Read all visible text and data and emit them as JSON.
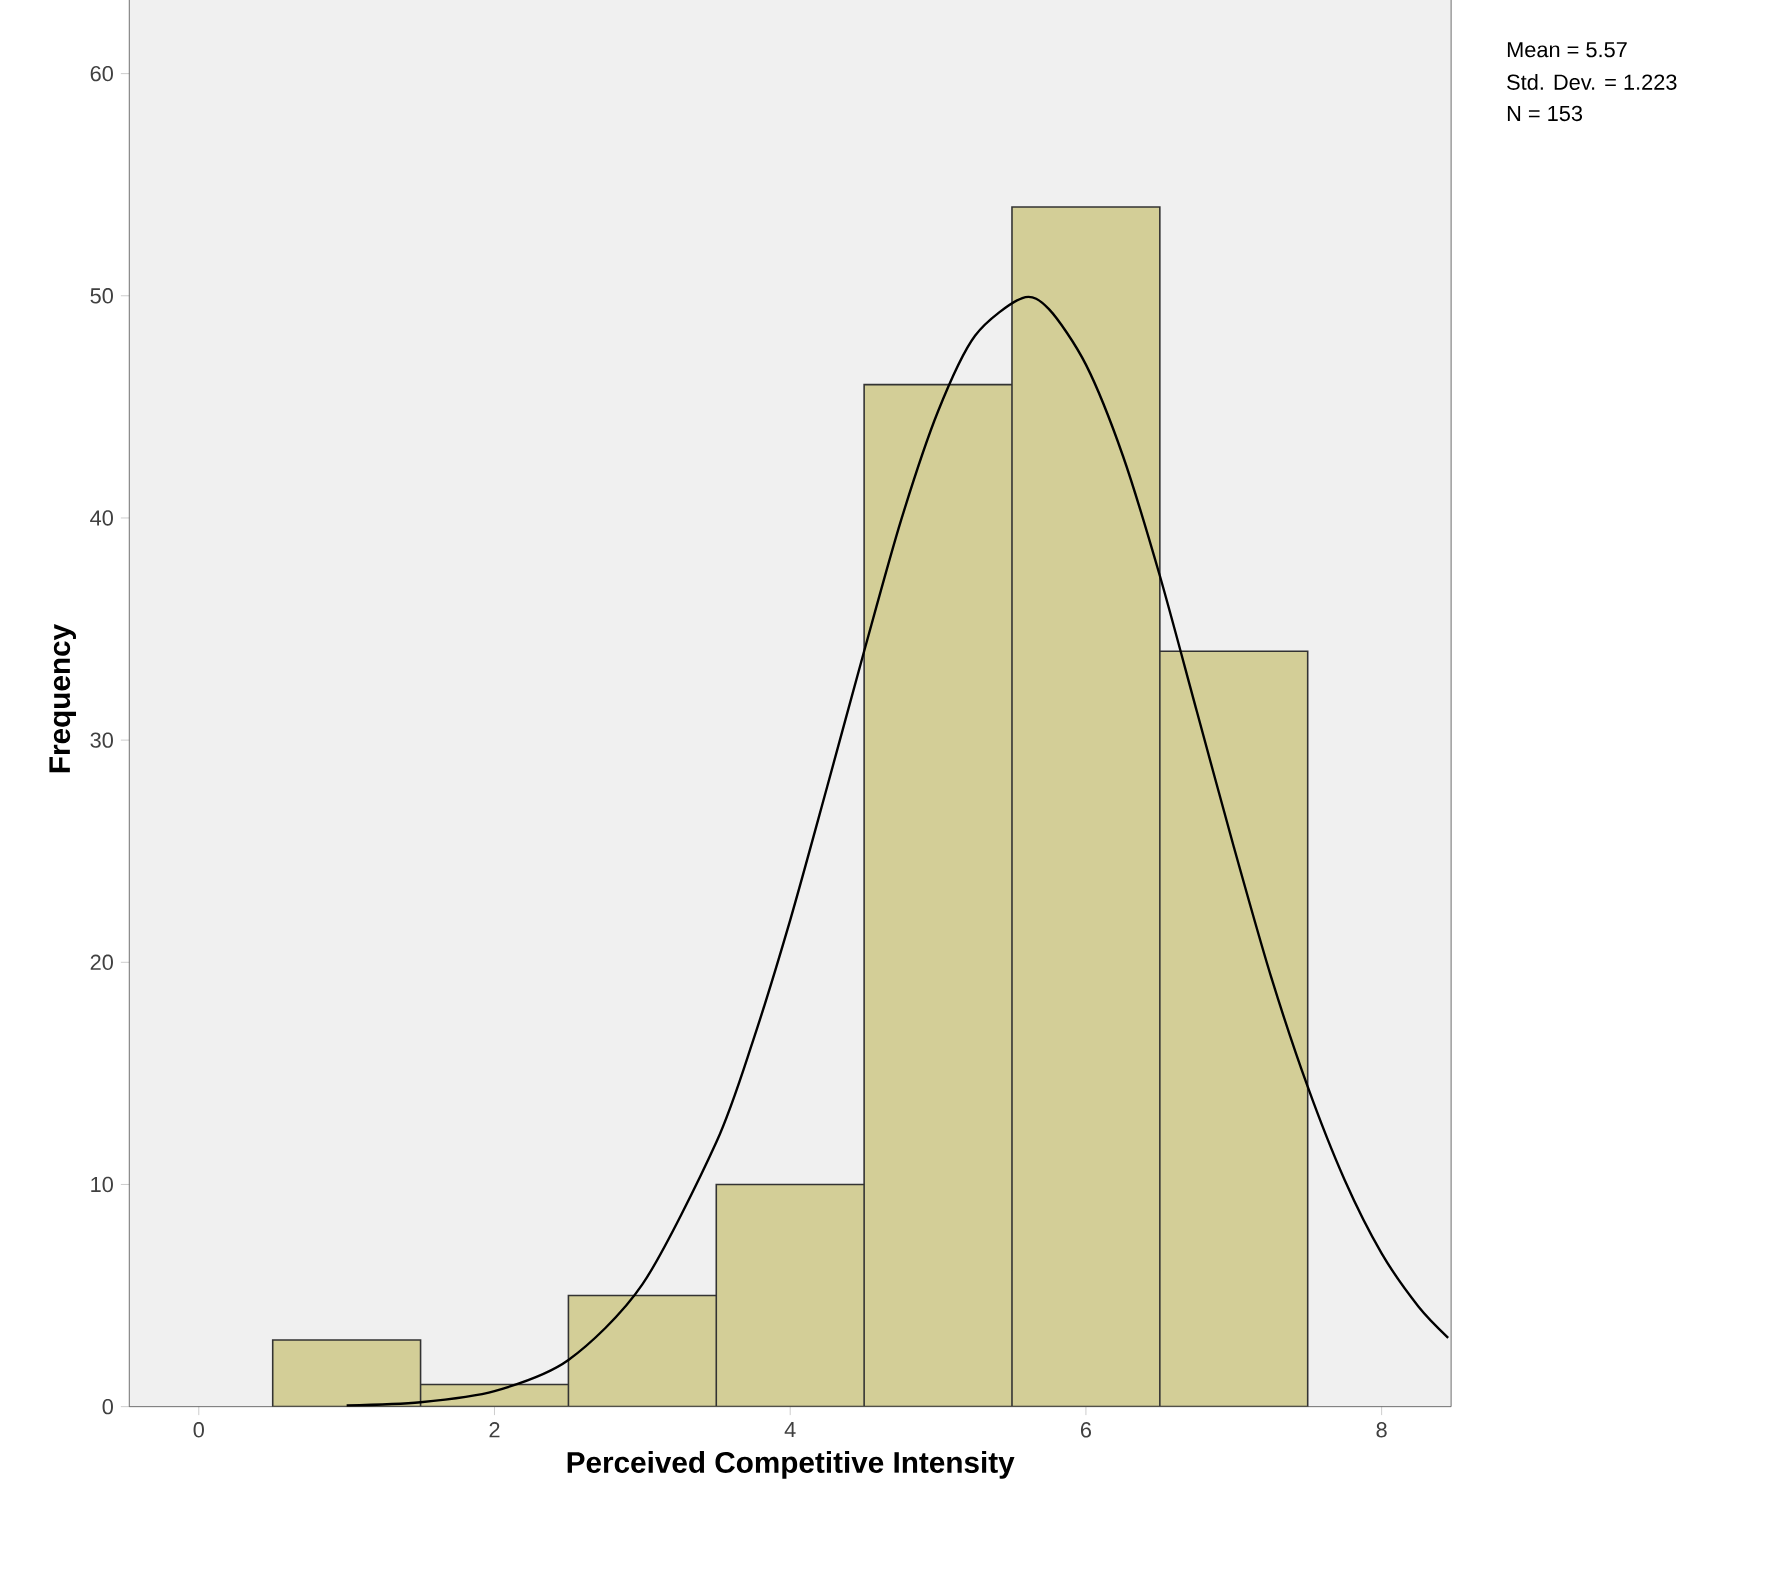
{
  "chart_data": {
    "type": "histogram",
    "xlabel": "Perceived Competitive Intensity",
    "ylabel": "Frequency",
    "bins": [
      0.5,
      1.5,
      2.5,
      3.5,
      4.5,
      5.5,
      6.5,
      7.5
    ],
    "values": [
      3,
      1,
      5,
      10,
      46,
      54,
      34
    ],
    "color": "#d3ce97",
    "series": [
      {
        "type": "line",
        "color": "#000000",
        "x": [
          1,
          1.5,
          2,
          2.5,
          3,
          3.5,
          3.75,
          4,
          4.25,
          4.5,
          4.75,
          5,
          5.25,
          5.57,
          5.75,
          6,
          6.25,
          6.5,
          6.75,
          7,
          7.25,
          7.5,
          7.75,
          8,
          8.25,
          8.45
        ],
        "values": [
          0.05,
          0.2,
          0.7,
          2.1,
          5.5,
          11.9,
          16.5,
          21.9,
          27.9,
          34,
          39.9,
          44.8,
          48.2,
          49.9,
          49.4,
          46.9,
          42.8,
          37.4,
          31.3,
          25.2,
          19.4,
          14.4,
          10.2,
          6.9,
          4.5,
          3.1
        ]
      }
    ],
    "xlim": [
      -0.47,
      8.47
    ],
    "ylim": [
      0,
      63.7
    ],
    "xticks": [
      0,
      2,
      4,
      6,
      8
    ],
    "yticks": [
      0,
      10,
      20,
      30,
      40,
      50,
      60
    ],
    "annotations": [
      "Mean = 5.57",
      "Std. Dev. = 1.223",
      "N = 153"
    ]
  }
}
